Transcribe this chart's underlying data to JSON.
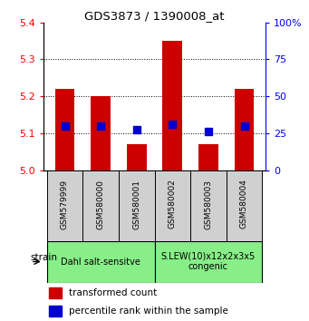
{
  "title": "GDS3873 / 1390008_at",
  "samples": [
    "GSM579999",
    "GSM580000",
    "GSM580001",
    "GSM580002",
    "GSM580003",
    "GSM580004"
  ],
  "bar_heights": [
    5.22,
    5.2,
    5.07,
    5.35,
    5.07,
    5.22
  ],
  "bar_base": 5.0,
  "blue_y": [
    5.12,
    5.12,
    5.11,
    5.125,
    5.105,
    5.12
  ],
  "ylim_left": [
    5.0,
    5.4
  ],
  "ylim_right": [
    0,
    100
  ],
  "yticks_left": [
    5.0,
    5.1,
    5.2,
    5.3,
    5.4
  ],
  "yticks_right": [
    0,
    25,
    50,
    75,
    100
  ],
  "bar_color": "#cc0000",
  "blue_color": "#0000cc",
  "group1_label": "Dahl salt-sensitve",
  "group2_label": "S.LEW(10)x12x2x3x5\ncongenic",
  "group1_color": "#88ee88",
  "group2_color": "#88ee88",
  "sample_box_color": "#d0d0d0",
  "legend_red_label": "transformed count",
  "legend_blue_label": "percentile rank within the sample",
  "strain_label": "strain",
  "bar_width": 0.55,
  "grid_color": "black",
  "grid_yticks": [
    5.1,
    5.2,
    5.3
  ]
}
